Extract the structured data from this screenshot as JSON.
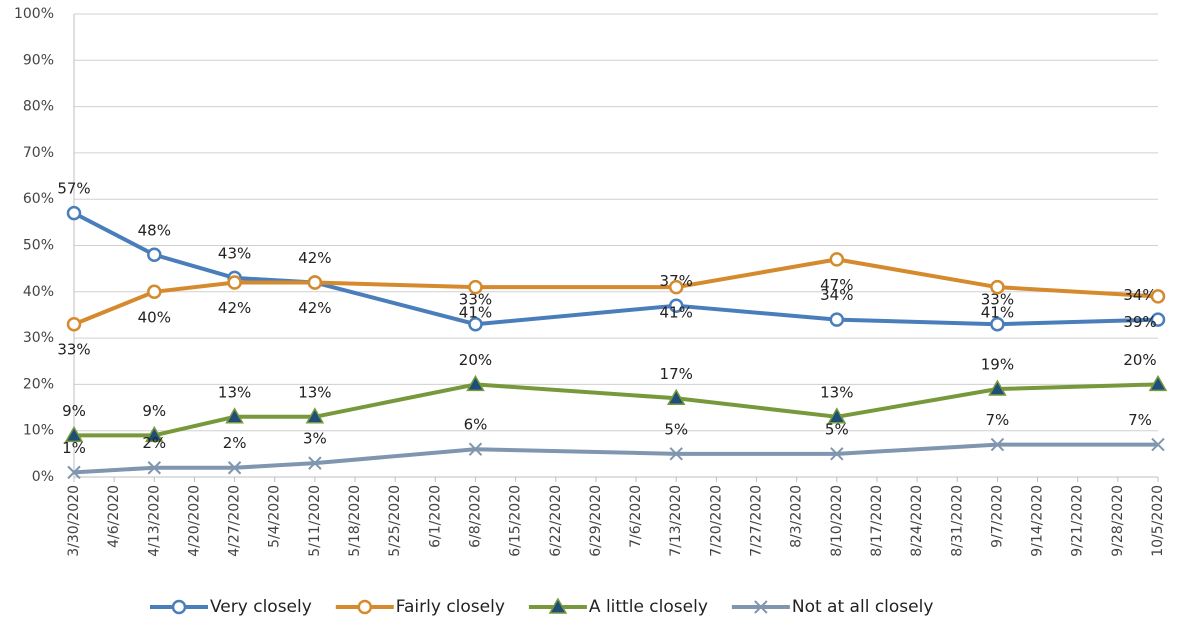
{
  "chart_data": {
    "type": "line",
    "x": [
      "3/30/2020",
      "4/13/2020",
      "4/27/2020",
      "5/11/2020",
      "6/8/2020",
      "7/13/2020",
      "8/10/2020",
      "9/7/2020",
      "10/5/2020"
    ],
    "xticks": [
      "3/30/2020",
      "4/6/2020",
      "4/13/2020",
      "4/20/2020",
      "4/27/2020",
      "5/4/2020",
      "5/11/2020",
      "5/18/2020",
      "5/25/2020",
      "6/1/2020",
      "6/8/2020",
      "6/15/2020",
      "6/22/2020",
      "6/29/2020",
      "7/6/2020",
      "7/13/2020",
      "7/20/2020",
      "7/27/2020",
      "8/3/2020",
      "8/10/2020",
      "8/17/2020",
      "8/24/2020",
      "8/31/2020",
      "9/7/2020",
      "9/14/2020",
      "9/21/2020",
      "9/28/2020",
      "10/5/2020"
    ],
    "ylim": [
      0,
      100
    ],
    "yticks": [
      {
        "value": 0,
        "label": "0%"
      },
      {
        "value": 10,
        "label": "10%"
      },
      {
        "value": 20,
        "label": "20%"
      },
      {
        "value": 30,
        "label": "30%"
      },
      {
        "value": 40,
        "label": "40%"
      },
      {
        "value": 50,
        "label": "50%"
      },
      {
        "value": 60,
        "label": "60%"
      },
      {
        "value": 70,
        "label": "70%"
      },
      {
        "value": 80,
        "label": "80%"
      },
      {
        "value": 90,
        "label": "90%"
      },
      {
        "value": 100,
        "label": "100%"
      }
    ],
    "grid": true,
    "legend": "bottom",
    "series": [
      {
        "name": "Very closely",
        "color": "#4a7ebb",
        "marker": "circle",
        "values": [
          57,
          48,
          43,
          42,
          33,
          37,
          34,
          33,
          34
        ],
        "value_labels": [
          "57%",
          "48%",
          "43%",
          "42%",
          "33%",
          "37%",
          "34%",
          "33%",
          "34%"
        ]
      },
      {
        "name": "Fairly closely",
        "color": "#d68a2e",
        "marker": "circle",
        "values": [
          33,
          40,
          42,
          42,
          41,
          41,
          47,
          41,
          39
        ],
        "value_labels": [
          "33%",
          "40%",
          "42%",
          "42%",
          "41%",
          "41%",
          "47%",
          "41%",
          "39%"
        ]
      },
      {
        "name": "A little closely",
        "color": "#77993c",
        "marker": "triangle",
        "values": [
          9,
          9,
          13,
          13,
          20,
          17,
          13,
          19,
          20
        ],
        "value_labels": [
          "9%",
          "9%",
          "13%",
          "13%",
          "20%",
          "17%",
          "13%",
          "19%",
          "20%"
        ]
      },
      {
        "name": "Not at all closely",
        "color": "#7f96ae",
        "marker": "x",
        "values": [
          1,
          2,
          2,
          3,
          6,
          5,
          5,
          7,
          7
        ],
        "value_labels": [
          "1%",
          "2%",
          "2%",
          "3%",
          "6%",
          "5%",
          "5%",
          "7%",
          "7%"
        ]
      }
    ]
  }
}
